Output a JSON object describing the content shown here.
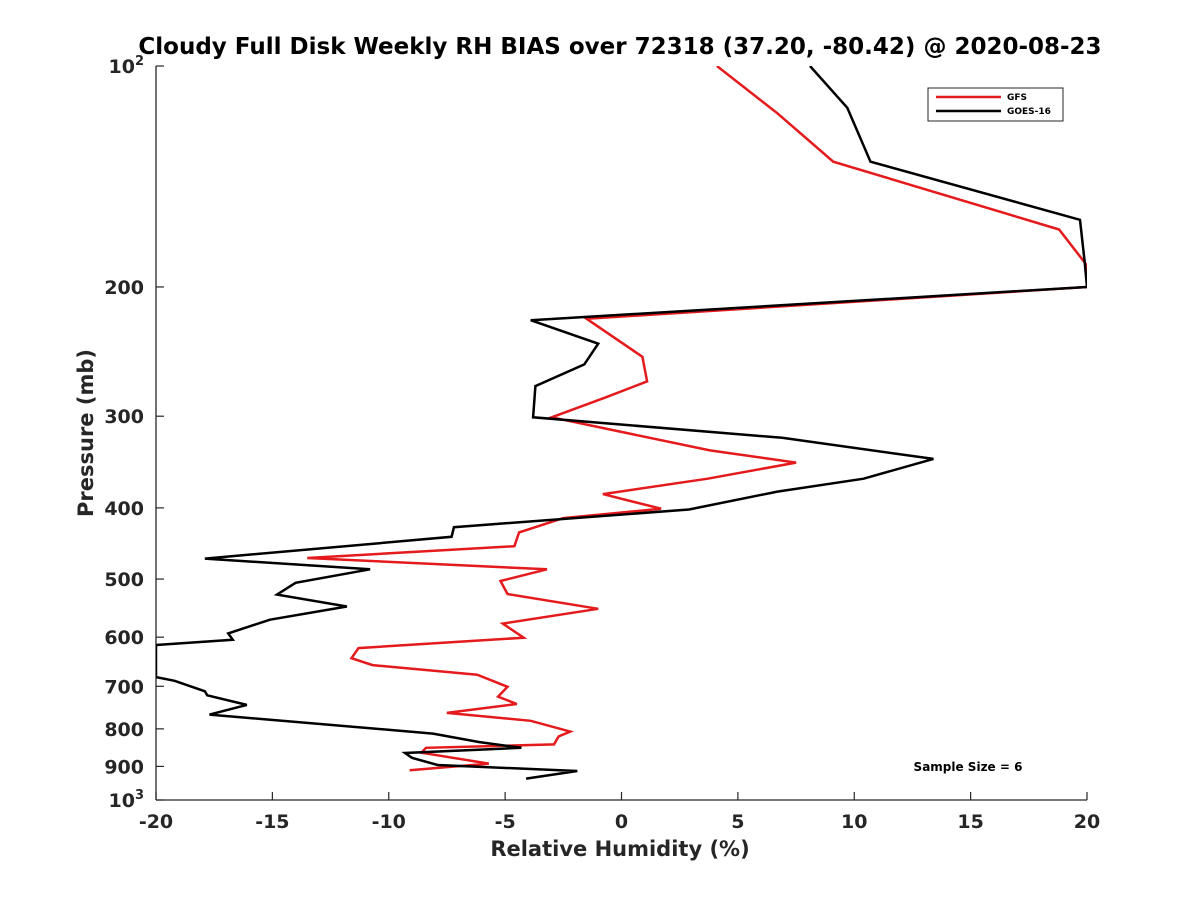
{
  "chart_data": {
    "type": "line",
    "title": "Cloudy Full Disk Weekly RH BIAS over 72318 (37.20, -80.42) @ 2020-08-23",
    "xlabel": "Relative Humidity (%)",
    "ylabel": "Pressure (mb)",
    "xlim": [
      -20,
      20
    ],
    "ylim": [
      100,
      1000
    ],
    "y_scale": "log",
    "y_direction": "reversed",
    "x_ticks": [
      "-20",
      "-15",
      "-10",
      "-5",
      "0",
      "5",
      "10",
      "15",
      "20"
    ],
    "y_ticks": [
      {
        "value": 100,
        "base": "10",
        "exp": "2"
      },
      {
        "value": 200,
        "label": "200"
      },
      {
        "value": 300,
        "label": "300"
      },
      {
        "value": 400,
        "label": "400"
      },
      {
        "value": 500,
        "label": "500"
      },
      {
        "value": 600,
        "label": "600"
      },
      {
        "value": 700,
        "label": "700"
      },
      {
        "value": 800,
        "label": "800"
      },
      {
        "value": 900,
        "label": "900"
      },
      {
        "value": 1000,
        "base": "10",
        "exp": "3"
      }
    ],
    "legend_position": "top-right",
    "annotation": "Sample Size = 6",
    "series": [
      {
        "name": "GFS",
        "color": "#e41a1c",
        "points": [
          [
            4.1,
            100
          ],
          [
            6.7,
            116
          ],
          [
            9.1,
            135
          ],
          [
            18.8,
            167
          ],
          [
            20,
            187
          ],
          [
            20,
            200
          ],
          [
            -1.5,
            221
          ],
          [
            0.9,
            249
          ],
          [
            1.1,
            269
          ],
          [
            -0.7,
            283
          ],
          [
            -3.0,
            301
          ],
          [
            3.8,
            334
          ],
          [
            7.5,
            347
          ],
          [
            3.7,
            365
          ],
          [
            -0.8,
            383
          ],
          [
            1.7,
            401
          ],
          [
            -2.5,
            413
          ],
          [
            -4.4,
            432
          ],
          [
            -4.6,
            451
          ],
          [
            -13.5,
            468
          ],
          [
            -3.2,
            485
          ],
          [
            -5.2,
            503
          ],
          [
            -4.9,
            524
          ],
          [
            -1.0,
            549
          ],
          [
            -5.1,
            575
          ],
          [
            -4.2,
            601
          ],
          [
            -11.3,
            621
          ],
          [
            -11.6,
            641
          ],
          [
            -10.7,
            655
          ],
          [
            -6.2,
            675
          ],
          [
            -4.9,
            701
          ],
          [
            -5.3,
            723
          ],
          [
            -4.5,
            740
          ],
          [
            -7.5,
            761
          ],
          [
            -3.9,
            780
          ],
          [
            -2.2,
            807
          ],
          [
            -2.7,
            819
          ],
          [
            -2.9,
            840
          ],
          [
            -8.4,
            849
          ],
          [
            -8.6,
            862
          ],
          [
            -5.7,
            892
          ],
          [
            -9.1,
            911
          ]
        ]
      },
      {
        "name": "GOES-16",
        "color": "#000000",
        "points": [
          [
            8.1,
            100
          ],
          [
            9.7,
            114
          ],
          [
            10.7,
            135
          ],
          [
            19.7,
            162
          ],
          [
            19.9,
            185
          ],
          [
            20,
            200
          ],
          [
            -3.9,
            222
          ],
          [
            -1.0,
            239
          ],
          [
            -1.6,
            255
          ],
          [
            -3.7,
            273
          ],
          [
            -3.8,
            301
          ],
          [
            6.9,
            321
          ],
          [
            13.4,
            343
          ],
          [
            10.4,
            365
          ],
          [
            6.7,
            380
          ],
          [
            2.9,
            402
          ],
          [
            -7.2,
            425
          ],
          [
            -7.3,
            438
          ],
          [
            -17.9,
            469
          ],
          [
            -10.8,
            485
          ],
          [
            -14.0,
            506
          ],
          [
            -14.8,
            525
          ],
          [
            -11.8,
            545
          ],
          [
            -15.1,
            568
          ],
          [
            -16.9,
            593
          ],
          [
            -16.7,
            605
          ],
          [
            -20,
            615
          ],
          [
            -20,
            680
          ],
          [
            -19.2,
            688
          ],
          [
            -17.9,
            711
          ],
          [
            -17.8,
            720
          ],
          [
            -16.1,
            742
          ],
          [
            -17.7,
            765
          ],
          [
            -8.1,
            812
          ],
          [
            -6.1,
            834
          ],
          [
            -4.3,
            849
          ],
          [
            -9.3,
            863
          ],
          [
            -9.0,
            876
          ],
          [
            -7.9,
            896
          ],
          [
            -1.9,
            913
          ],
          [
            -4.1,
            935
          ]
        ]
      }
    ]
  }
}
